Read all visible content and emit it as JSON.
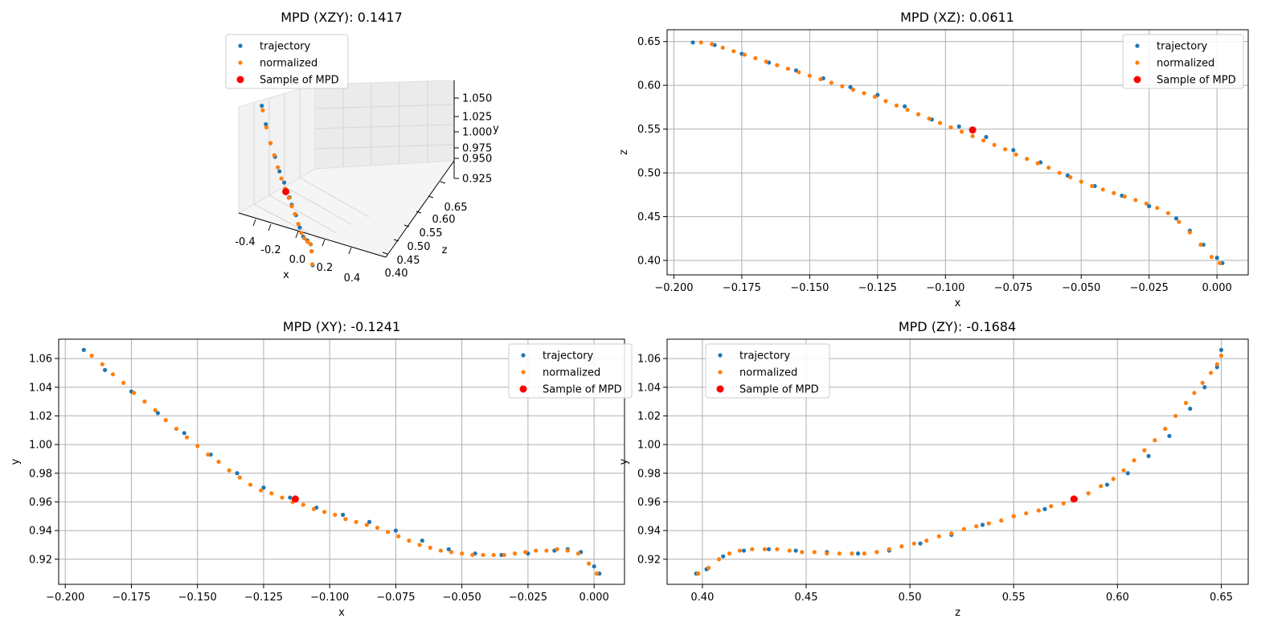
{
  "colors": {
    "trajectory": "#1f77b4",
    "normalized": "#ff7f0e",
    "sample": "#ff0000",
    "grid": "#b0b0b0"
  },
  "chart_data": [
    {
      "type": "scatter3d",
      "title": "MPD (XZY): 0.1417",
      "xlabel": "x",
      "ylabel": "z",
      "zlabel": "y",
      "x_ticks": [
        "-0.4",
        "-0.2",
        "0.0",
        "0.2",
        "0.4"
      ],
      "y_ticks": [
        "0.40",
        "0.45",
        "0.50",
        "0.55",
        "0.60",
        "0.65"
      ],
      "z_ticks": [
        "0.925",
        "0.950",
        "0.975",
        "1.000",
        "1.025",
        "1.050"
      ],
      "xlim": [
        -0.5,
        0.5
      ],
      "ylim": [
        0.38,
        0.67
      ],
      "zlim": [
        0.9,
        1.075
      ],
      "legend": {
        "placement": "upper-left",
        "entries": [
          "trajectory",
          "normalized",
          "Sample of MPD"
        ]
      },
      "series": [
        {
          "name": "trajectory",
          "x": [
            -0.193,
            -0.18,
            -0.165,
            -0.15,
            -0.135,
            -0.12,
            -0.1,
            -0.09,
            -0.075,
            -0.06,
            -0.045,
            -0.03,
            -0.015,
            -0.005,
            0.002
          ],
          "z": [
            0.65,
            0.64,
            0.628,
            0.615,
            0.601,
            0.59,
            0.565,
            0.549,
            0.532,
            0.512,
            0.488,
            0.47,
            0.445,
            0.415,
            0.397
          ],
          "y": [
            1.066,
            1.042,
            1.018,
            1.002,
            0.985,
            0.972,
            0.958,
            0.952,
            0.942,
            0.93,
            0.924,
            0.924,
            0.926,
            0.925,
            0.91
          ]
        },
        {
          "name": "normalized",
          "x": [
            -0.19,
            -0.178,
            -0.165,
            -0.152,
            -0.14,
            -0.128,
            -0.115,
            -0.102,
            -0.09,
            -0.078,
            -0.065,
            -0.052,
            -0.04,
            -0.028,
            -0.016,
            -0.006,
            0.001
          ],
          "z": [
            0.648,
            0.638,
            0.628,
            0.616,
            0.604,
            0.593,
            0.58,
            0.566,
            0.549,
            0.534,
            0.516,
            0.496,
            0.48,
            0.464,
            0.446,
            0.418,
            0.398
          ],
          "y": [
            1.06,
            1.038,
            1.018,
            1.004,
            0.99,
            0.977,
            0.966,
            0.957,
            0.95,
            0.943,
            0.934,
            0.927,
            0.924,
            0.924,
            0.926,
            0.924,
            0.911
          ]
        },
        {
          "name": "Sample of MPD",
          "x": [
            -0.113
          ],
          "z": [
            0.579
          ],
          "y": [
            0.962
          ]
        }
      ]
    },
    {
      "type": "scatter",
      "title": "MPD (XZ): 0.0611",
      "xlabel": "x",
      "ylabel": "z",
      "xlim": [
        -0.2025,
        0.0115
      ],
      "ylim": [
        0.3835,
        0.6635
      ],
      "x_ticks": [
        -0.2,
        -0.175,
        -0.15,
        -0.125,
        -0.1,
        -0.075,
        -0.05,
        -0.025,
        0.0
      ],
      "x_tick_labels": [
        "−0.200",
        "−0.175",
        "−0.150",
        "−0.125",
        "−0.100",
        "−0.075",
        "−0.050",
        "−0.025",
        "0.000"
      ],
      "y_ticks": [
        0.4,
        0.45,
        0.5,
        0.55,
        0.6,
        0.65
      ],
      "y_tick_labels": [
        "0.40",
        "0.45",
        "0.50",
        "0.55",
        "0.60",
        "0.65"
      ],
      "grid": true,
      "legend": {
        "placement": "upper-right",
        "entries": [
          "trajectory",
          "normalized",
          "Sample of MPD"
        ]
      },
      "series": [
        {
          "name": "trajectory",
          "x": [
            -0.193,
            -0.185,
            -0.175,
            -0.165,
            -0.155,
            -0.145,
            -0.135,
            -0.125,
            -0.115,
            -0.105,
            -0.095,
            -0.085,
            -0.075,
            -0.065,
            -0.055,
            -0.045,
            -0.035,
            -0.025,
            -0.015,
            -0.01,
            -0.005,
            0.0,
            0.002
          ],
          "y": [
            0.649,
            0.646,
            0.636,
            0.626,
            0.617,
            0.608,
            0.598,
            0.589,
            0.576,
            0.561,
            0.553,
            0.541,
            0.526,
            0.512,
            0.497,
            0.485,
            0.474,
            0.462,
            0.448,
            0.434,
            0.418,
            0.403,
            0.397
          ]
        },
        {
          "name": "normalized",
          "x": [
            -0.19,
            -0.186,
            -0.182,
            -0.178,
            -0.174,
            -0.17,
            -0.166,
            -0.162,
            -0.158,
            -0.154,
            -0.15,
            -0.146,
            -0.142,
            -0.138,
            -0.134,
            -0.13,
            -0.126,
            -0.122,
            -0.118,
            -0.114,
            -0.11,
            -0.106,
            -0.102,
            -0.098,
            -0.094,
            -0.09,
            -0.086,
            -0.082,
            -0.078,
            -0.074,
            -0.07,
            -0.066,
            -0.062,
            -0.058,
            -0.054,
            -0.05,
            -0.046,
            -0.042,
            -0.038,
            -0.034,
            -0.03,
            -0.026,
            -0.022,
            -0.018,
            -0.014,
            -0.01,
            -0.006,
            -0.002,
            0.001
          ],
          "y": [
            0.649,
            0.647,
            0.643,
            0.639,
            0.635,
            0.631,
            0.627,
            0.623,
            0.619,
            0.615,
            0.611,
            0.607,
            0.603,
            0.599,
            0.595,
            0.591,
            0.587,
            0.582,
            0.577,
            0.572,
            0.567,
            0.562,
            0.557,
            0.552,
            0.547,
            0.542,
            0.537,
            0.532,
            0.527,
            0.521,
            0.516,
            0.511,
            0.506,
            0.5,
            0.495,
            0.49,
            0.485,
            0.481,
            0.477,
            0.473,
            0.469,
            0.465,
            0.46,
            0.454,
            0.444,
            0.432,
            0.418,
            0.404,
            0.397
          ]
        },
        {
          "name": "Sample of MPD",
          "x": [
            -0.09
          ],
          "y": [
            0.549
          ]
        }
      ]
    },
    {
      "type": "scatter",
      "title": "MPD (XY): -0.1241",
      "xlabel": "x",
      "ylabel": "y",
      "xlim": [
        -0.2025,
        0.0115
      ],
      "ylim": [
        0.9025,
        1.0735
      ],
      "x_ticks": [
        -0.2,
        -0.175,
        -0.15,
        -0.125,
        -0.1,
        -0.075,
        -0.05,
        -0.025,
        0.0
      ],
      "x_tick_labels": [
        "−0.200",
        "−0.175",
        "−0.150",
        "−0.125",
        "−0.100",
        "−0.075",
        "−0.050",
        "−0.025",
        "0.000"
      ],
      "y_ticks": [
        0.92,
        0.94,
        0.96,
        0.98,
        1.0,
        1.02,
        1.04,
        1.06
      ],
      "y_tick_labels": [
        "0.92",
        "0.94",
        "0.96",
        "0.98",
        "1.00",
        "1.02",
        "1.04",
        "1.06"
      ],
      "grid": true,
      "legend": {
        "placement": "upper-right",
        "entries": [
          "trajectory",
          "normalized",
          "Sample of MPD"
        ]
      },
      "series": [
        {
          "name": "trajectory",
          "x": [
            -0.193,
            -0.185,
            -0.175,
            -0.165,
            -0.155,
            -0.145,
            -0.135,
            -0.125,
            -0.115,
            -0.105,
            -0.095,
            -0.085,
            -0.075,
            -0.065,
            -0.055,
            -0.045,
            -0.035,
            -0.025,
            -0.015,
            -0.01,
            -0.005,
            0.0,
            0.002
          ],
          "y": [
            1.066,
            1.052,
            1.037,
            1.022,
            1.008,
            0.993,
            0.98,
            0.97,
            0.963,
            0.956,
            0.951,
            0.946,
            0.94,
            0.933,
            0.927,
            0.924,
            0.923,
            0.924,
            0.926,
            0.927,
            0.925,
            0.915,
            0.91
          ]
        },
        {
          "name": "normalized",
          "x": [
            -0.19,
            -0.186,
            -0.182,
            -0.178,
            -0.174,
            -0.17,
            -0.166,
            -0.162,
            -0.158,
            -0.154,
            -0.15,
            -0.146,
            -0.142,
            -0.138,
            -0.134,
            -0.13,
            -0.126,
            -0.122,
            -0.118,
            -0.114,
            -0.11,
            -0.106,
            -0.102,
            -0.098,
            -0.094,
            -0.09,
            -0.086,
            -0.082,
            -0.078,
            -0.074,
            -0.07,
            -0.066,
            -0.062,
            -0.058,
            -0.054,
            -0.05,
            -0.046,
            -0.042,
            -0.038,
            -0.034,
            -0.03,
            -0.026,
            -0.022,
            -0.018,
            -0.014,
            -0.01,
            -0.006,
            -0.002,
            0.001
          ],
          "y": [
            1.062,
            1.056,
            1.049,
            1.043,
            1.036,
            1.03,
            1.024,
            1.017,
            1.011,
            1.005,
            0.999,
            0.993,
            0.988,
            0.982,
            0.977,
            0.972,
            0.968,
            0.966,
            0.963,
            0.96,
            0.958,
            0.955,
            0.953,
            0.951,
            0.948,
            0.946,
            0.944,
            0.942,
            0.939,
            0.936,
            0.933,
            0.93,
            0.928,
            0.926,
            0.925,
            0.924,
            0.923,
            0.923,
            0.923,
            0.923,
            0.924,
            0.925,
            0.926,
            0.926,
            0.927,
            0.926,
            0.924,
            0.917,
            0.91
          ]
        },
        {
          "name": "Sample of MPD",
          "x": [
            -0.113
          ],
          "y": [
            0.962
          ]
        }
      ]
    },
    {
      "type": "scatter",
      "title": "MPD (ZY): -0.1684",
      "xlabel": "z",
      "ylabel": "y",
      "xlim": [
        0.383,
        0.663
      ],
      "ylim": [
        0.9025,
        1.0735
      ],
      "x_ticks": [
        0.4,
        0.45,
        0.5,
        0.55,
        0.6,
        0.65
      ],
      "x_tick_labels": [
        "0.40",
        "0.45",
        "0.50",
        "0.55",
        "0.60",
        "0.65"
      ],
      "y_ticks": [
        0.92,
        0.94,
        0.96,
        0.98,
        1.0,
        1.02,
        1.04,
        1.06
      ],
      "y_tick_labels": [
        "0.92",
        "0.94",
        "0.96",
        "0.98",
        "1.00",
        "1.02",
        "1.04",
        "1.06"
      ],
      "grid": true,
      "legend": {
        "placement": "upper-left",
        "entries": [
          "trajectory",
          "normalized",
          "Sample of MPD"
        ]
      },
      "series": [
        {
          "name": "trajectory",
          "x": [
            0.397,
            0.402,
            0.41,
            0.42,
            0.432,
            0.445,
            0.46,
            0.475,
            0.49,
            0.505,
            0.52,
            0.535,
            0.55,
            0.565,
            0.58,
            0.595,
            0.605,
            0.615,
            0.625,
            0.635,
            0.642,
            0.648,
            0.65
          ],
          "y": [
            0.91,
            0.913,
            0.922,
            0.926,
            0.927,
            0.926,
            0.925,
            0.924,
            0.926,
            0.931,
            0.937,
            0.944,
            0.95,
            0.955,
            0.962,
            0.972,
            0.98,
            0.992,
            1.006,
            1.025,
            1.04,
            1.054,
            1.066
          ]
        },
        {
          "name": "normalized",
          "x": [
            0.398,
            0.403,
            0.408,
            0.413,
            0.418,
            0.424,
            0.43,
            0.436,
            0.442,
            0.448,
            0.454,
            0.46,
            0.466,
            0.472,
            0.478,
            0.484,
            0.49,
            0.496,
            0.502,
            0.508,
            0.514,
            0.52,
            0.526,
            0.532,
            0.538,
            0.544,
            0.55,
            0.556,
            0.562,
            0.568,
            0.574,
            0.58,
            0.586,
            0.592,
            0.598,
            0.603,
            0.608,
            0.613,
            0.618,
            0.623,
            0.628,
            0.633,
            0.637,
            0.641,
            0.645,
            0.648,
            0.65
          ],
          "y": [
            0.91,
            0.914,
            0.92,
            0.924,
            0.926,
            0.927,
            0.927,
            0.927,
            0.926,
            0.925,
            0.925,
            0.924,
            0.924,
            0.924,
            0.924,
            0.925,
            0.927,
            0.929,
            0.931,
            0.933,
            0.936,
            0.938,
            0.941,
            0.943,
            0.945,
            0.947,
            0.95,
            0.952,
            0.954,
            0.957,
            0.959,
            0.962,
            0.966,
            0.971,
            0.976,
            0.982,
            0.989,
            0.996,
            1.003,
            1.011,
            1.02,
            1.029,
            1.036,
            1.043,
            1.05,
            1.056,
            1.062
          ]
        },
        {
          "name": "Sample of MPD",
          "x": [
            0.579
          ],
          "y": [
            0.962
          ]
        }
      ]
    }
  ]
}
